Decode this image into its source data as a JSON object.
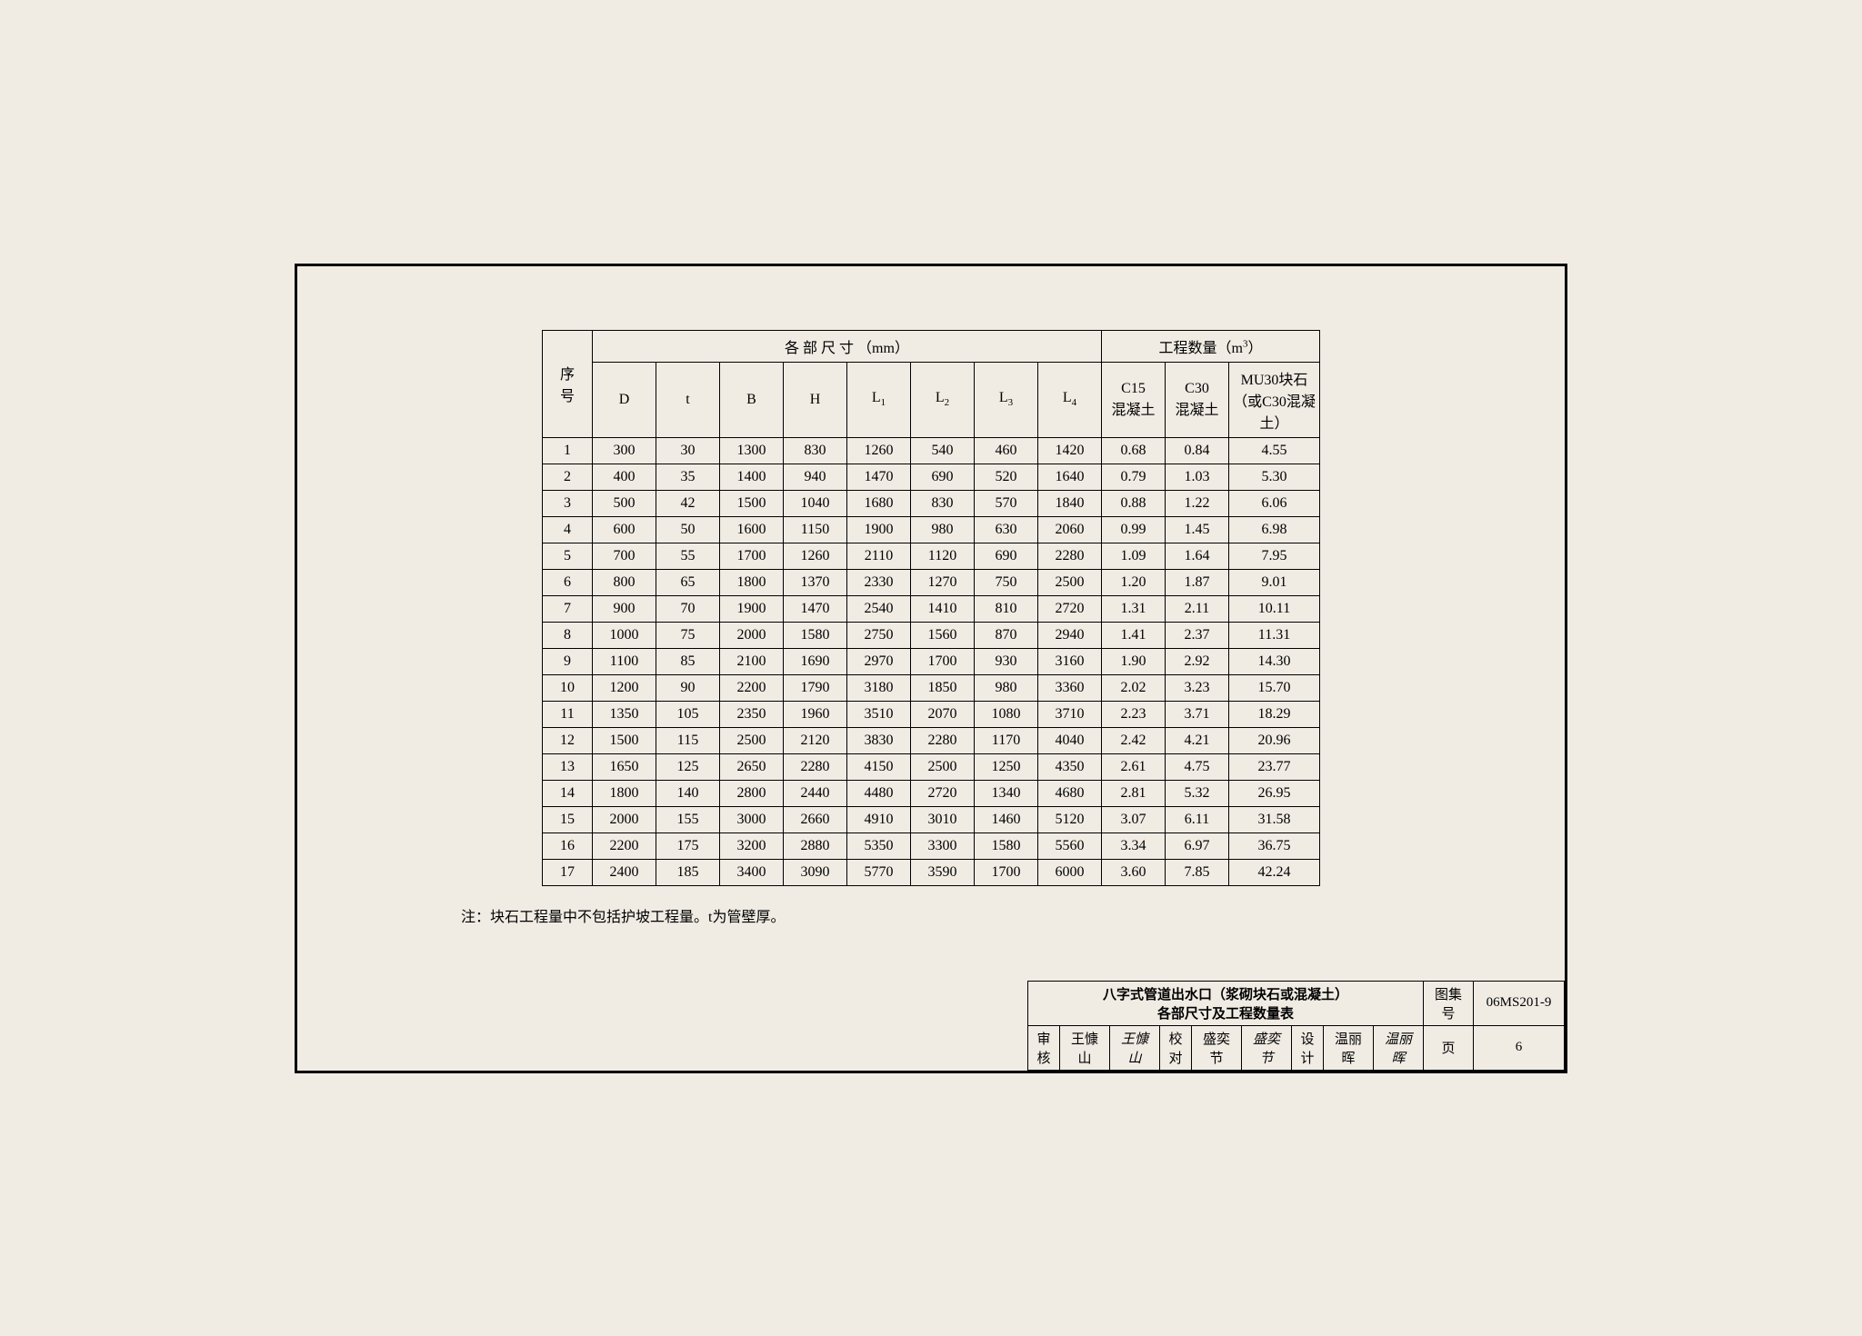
{
  "table": {
    "header_seq": "序号",
    "header_dim_group": "各  部  尺  寸 （mm）",
    "header_qty_group": "工程数量（m³）",
    "columns": [
      "D",
      "t",
      "B",
      "H",
      "L₁",
      "L₂",
      "L₃",
      "L₄"
    ],
    "qty_columns": [
      "C15\n混凝土",
      "C30\n混凝土",
      "MU30块石\n（或C30混凝土）"
    ],
    "rows": [
      [
        "1",
        "300",
        "30",
        "1300",
        "830",
        "1260",
        "540",
        "460",
        "1420",
        "0.68",
        "0.84",
        "4.55"
      ],
      [
        "2",
        "400",
        "35",
        "1400",
        "940",
        "1470",
        "690",
        "520",
        "1640",
        "0.79",
        "1.03",
        "5.30"
      ],
      [
        "3",
        "500",
        "42",
        "1500",
        "1040",
        "1680",
        "830",
        "570",
        "1840",
        "0.88",
        "1.22",
        "6.06"
      ],
      [
        "4",
        "600",
        "50",
        "1600",
        "1150",
        "1900",
        "980",
        "630",
        "2060",
        "0.99",
        "1.45",
        "6.98"
      ],
      [
        "5",
        "700",
        "55",
        "1700",
        "1260",
        "2110",
        "1120",
        "690",
        "2280",
        "1.09",
        "1.64",
        "7.95"
      ],
      [
        "6",
        "800",
        "65",
        "1800",
        "1370",
        "2330",
        "1270",
        "750",
        "2500",
        "1.20",
        "1.87",
        "9.01"
      ],
      [
        "7",
        "900",
        "70",
        "1900",
        "1470",
        "2540",
        "1410",
        "810",
        "2720",
        "1.31",
        "2.11",
        "10.11"
      ],
      [
        "8",
        "1000",
        "75",
        "2000",
        "1580",
        "2750",
        "1560",
        "870",
        "2940",
        "1.41",
        "2.37",
        "11.31"
      ],
      [
        "9",
        "1100",
        "85",
        "2100",
        "1690",
        "2970",
        "1700",
        "930",
        "3160",
        "1.90",
        "2.92",
        "14.30"
      ],
      [
        "10",
        "1200",
        "90",
        "2200",
        "1790",
        "3180",
        "1850",
        "980",
        "3360",
        "2.02",
        "3.23",
        "15.70"
      ],
      [
        "11",
        "1350",
        "105",
        "2350",
        "1960",
        "3510",
        "2070",
        "1080",
        "3710",
        "2.23",
        "3.71",
        "18.29"
      ],
      [
        "12",
        "1500",
        "115",
        "2500",
        "2120",
        "3830",
        "2280",
        "1170",
        "4040",
        "2.42",
        "4.21",
        "20.96"
      ],
      [
        "13",
        "1650",
        "125",
        "2650",
        "2280",
        "4150",
        "2500",
        "1250",
        "4350",
        "2.61",
        "4.75",
        "23.77"
      ],
      [
        "14",
        "1800",
        "140",
        "2800",
        "2440",
        "4480",
        "2720",
        "1340",
        "4680",
        "2.81",
        "5.32",
        "26.95"
      ],
      [
        "15",
        "2000",
        "155",
        "3000",
        "2660",
        "4910",
        "3010",
        "1460",
        "5120",
        "3.07",
        "6.11",
        "31.58"
      ],
      [
        "16",
        "2200",
        "175",
        "3200",
        "2880",
        "5350",
        "3300",
        "1580",
        "5560",
        "3.34",
        "6.97",
        "36.75"
      ],
      [
        "17",
        "2400",
        "185",
        "3400",
        "3090",
        "5770",
        "3590",
        "1700",
        "6000",
        "3.60",
        "7.85",
        "42.24"
      ]
    ]
  },
  "note": "注：块石工程量中不包括护坡工程量。t为管壁厚。",
  "title_block": {
    "title_line1": "八字式管道出水口（浆砌块石或混凝土）",
    "title_line2": "各部尺寸及工程数量表",
    "atlas_label": "图集号",
    "atlas_value": "06MS201-9",
    "page_label": "页",
    "page_value": "6",
    "review_label": "审核",
    "review_name": "王慷山",
    "review_sig": "王慷山",
    "check_label": "校对",
    "check_name": "盛奕节",
    "check_sig": "盛奕节",
    "design_label": "设计",
    "design_name": "温丽晖",
    "design_sig": "温丽晖"
  }
}
